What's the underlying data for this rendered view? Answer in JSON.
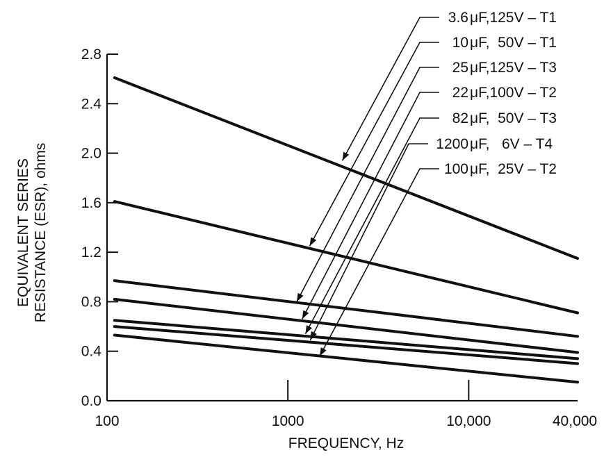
{
  "chart_data": {
    "type": "line",
    "xlabel": "FREQUENCY, Hz",
    "ylabel_lines": [
      "EQUIVALENT SERIES",
      "RESISTANCE (ESR), ohms"
    ],
    "x_scale": "log",
    "xlim": [
      100,
      40000
    ],
    "ylim": [
      0,
      2.8
    ],
    "x_ticks": [
      {
        "value": 100,
        "label": "100"
      },
      {
        "value": 1000,
        "label": "1000"
      },
      {
        "value": 10000,
        "label": "10,000"
      },
      {
        "value": 40000,
        "label": "40,000"
      }
    ],
    "y_ticks": [
      {
        "value": 0.0,
        "label": "0.0"
      },
      {
        "value": 0.4,
        "label": "0.4"
      },
      {
        "value": 0.8,
        "label": "0.8"
      },
      {
        "value": 1.2,
        "label": "1.2"
      },
      {
        "value": 1.6,
        "label": "1.6"
      },
      {
        "value": 2.0,
        "label": "2.0"
      },
      {
        "value": 2.4,
        "label": "2.4"
      },
      {
        "value": 2.8,
        "label": "2.8"
      }
    ],
    "grid": false,
    "series": [
      {
        "name": "3.6 μF,125V − T1",
        "x": [
          110,
          40000
        ],
        "y": [
          2.61,
          1.15
        ],
        "pointer": {
          "x": 2000,
          "y": 1.94
        }
      },
      {
        "name": "10 μF,  50V − T1",
        "x": [
          110,
          40000
        ],
        "y": [
          1.61,
          0.71
        ],
        "pointer": {
          "x": 1320,
          "y": 1.25
        }
      },
      {
        "name": "25 μF,125V − T3",
        "x": [
          110,
          40000
        ],
        "y": [
          0.97,
          0.52
        ],
        "pointer": {
          "x": 1120,
          "y": 0.8
        }
      },
      {
        "name": "22 μF,100V − T2",
        "x": [
          110,
          40000
        ],
        "y": [
          0.82,
          0.39
        ],
        "pointer": {
          "x": 1200,
          "y": 0.66
        }
      },
      {
        "name": "82 μF,  50V − T3",
        "x": [
          110,
          40000
        ],
        "y": [
          0.65,
          0.34
        ],
        "pointer": {
          "x": 1250,
          "y": 0.54
        }
      },
      {
        "name": "1200 μF,   6V − T4",
        "x": [
          110,
          40000
        ],
        "y": [
          0.6,
          0.3
        ],
        "pointer": {
          "x": 1330,
          "y": 0.49
        }
      },
      {
        "name": "100 μF,  25V − T2",
        "x": [
          110,
          40000
        ],
        "y": [
          0.53,
          0.15
        ],
        "pointer": {
          "x": 1500,
          "y": 0.36
        }
      }
    ],
    "legend": {
      "placement": "top-right",
      "labels": [
        {
          "value": "3.6",
          "rest": "F,125V – T1"
        },
        {
          "value": "10",
          "rest": "F,  50V – T1"
        },
        {
          "value": "25",
          "rest": "F,125V – T3"
        },
        {
          "value": "22",
          "rest": "F,100V – T2"
        },
        {
          "value": "82",
          "rest": "F,  50V – T3"
        },
        {
          "value": "1200",
          "rest": "F,   6V – T4"
        },
        {
          "value": "100",
          "rest": "F,  25V – T2"
        }
      ],
      "unit_prefix": "μ"
    }
  }
}
